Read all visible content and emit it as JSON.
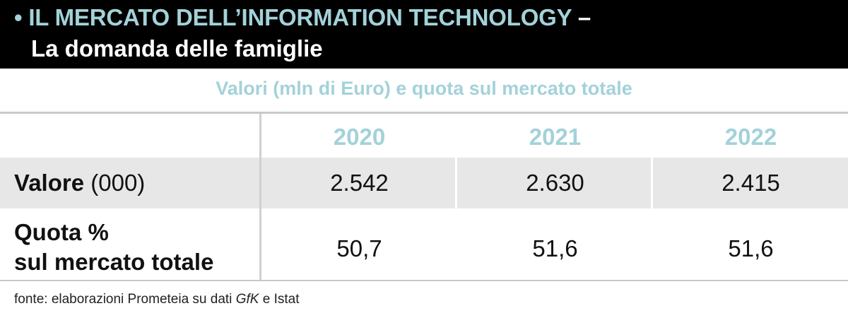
{
  "header": {
    "bullet": "•",
    "title": "IL MERCATO DELL’INFORMATION TECHNOLOGY",
    "dash": "–",
    "subtitle": "La domanda delle famiglie"
  },
  "table_caption": "Valori (mln di Euro) e quota sul mercato totale",
  "chart_data": {
    "type": "table",
    "title": "IL MERCATO DELL’INFORMATION TECHNOLOGY – La domanda delle famiglie",
    "subtitle": "Valori (mln di Euro) e quota sul mercato totale",
    "columns": [
      "2020",
      "2021",
      "2022"
    ],
    "rows": [
      {
        "label_bold": "Valore",
        "label_rest": "(000)",
        "values": [
          "2.542",
          "2.630",
          "2.415"
        ]
      },
      {
        "label_line1": "Quota %",
        "label_line2": "sul mercato totale",
        "values": [
          "50,7",
          "51,6",
          "51,6"
        ]
      }
    ]
  },
  "source": {
    "prefix": "fonte: elaborazioni Prometeia su dati",
    "italic": "GfK",
    "suffix": "e Istat"
  },
  "colors": {
    "header_bg": "#000000",
    "accent": "#a3d2d9",
    "row_band": "#e7e7e7",
    "rules": "#c9c9c9"
  }
}
